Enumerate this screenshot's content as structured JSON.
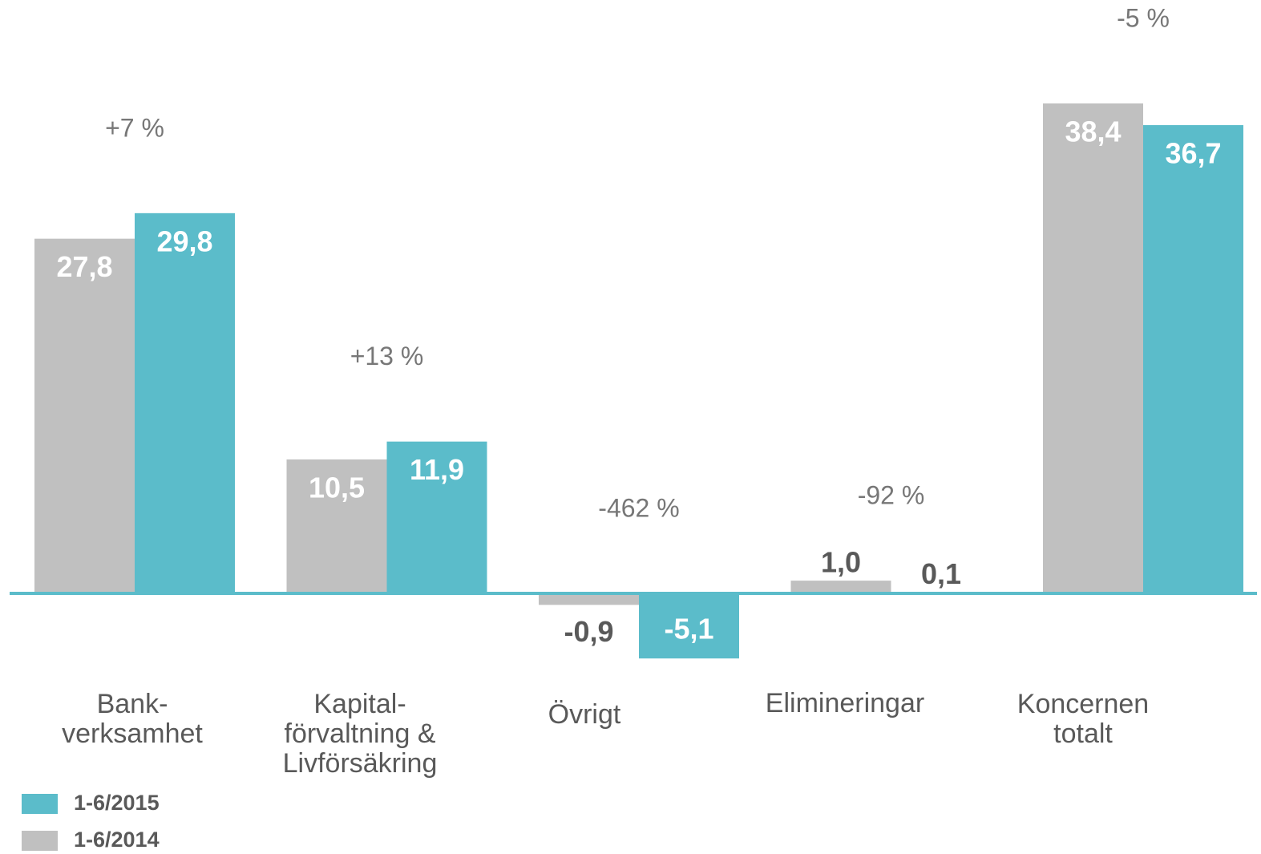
{
  "chart_data": {
    "type": "bar",
    "categories": [
      [
        "Bank-",
        "verksamhet"
      ],
      [
        "Kapital-",
        "förvaltning &",
        "Livförsäkring"
      ],
      [
        "Övrigt"
      ],
      [
        "Elimineringar"
      ],
      [
        "Koncernen",
        "totalt"
      ]
    ],
    "series": [
      {
        "name": "1-6/2014",
        "color": "#c0c0c0",
        "values": [
          27.8,
          10.5,
          -0.9,
          1.0,
          38.4
        ],
        "value_labels": [
          "27,8",
          "10,5",
          "-0,9",
          "1,0",
          "38,4"
        ]
      },
      {
        "name": "1-6/2015",
        "color": "#5bbcca",
        "values": [
          29.8,
          11.9,
          -5.1,
          0.1,
          36.7
        ],
        "value_labels": [
          "29,8",
          "11,9",
          "-5,1",
          "0,1",
          "36,7"
        ]
      }
    ],
    "annotations": [
      "+7 %",
      "+13 %",
      "-462 %",
      "-92 %",
      "-5 %"
    ],
    "axis_color": "#5bbcca"
  }
}
